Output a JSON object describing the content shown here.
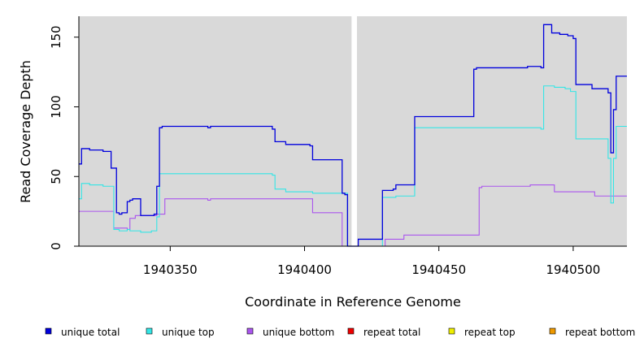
{
  "chart_data": {
    "type": "line",
    "xlabel": "Coordinate in Reference Genome",
    "ylabel": "Read Coverage Depth",
    "xlim": [
      1940316,
      1940520
    ],
    "ylim": [
      0,
      165
    ],
    "x_ticks": [
      1940350,
      1940400,
      1940450,
      1940500
    ],
    "x_tick_labels": [
      "1940350",
      "1940400",
      "1940450",
      "1940500"
    ],
    "y_ticks": [
      0,
      50,
      100,
      150
    ],
    "y_tick_labels": [
      "0",
      "50",
      "100",
      "150"
    ],
    "panel_color": "#d9d9d9",
    "gap": [
      1940417.5,
      1940419.5
    ],
    "legend_position": "bottom",
    "series": [
      {
        "name": "unique total",
        "color": "#0000dd",
        "points": [
          [
            1940316,
            59
          ],
          [
            1940317,
            70
          ],
          [
            1940320,
            69
          ],
          [
            1940325,
            68
          ],
          [
            1940328,
            56
          ],
          [
            1940330,
            24
          ],
          [
            1940331,
            23
          ],
          [
            1940332,
            24
          ],
          [
            1940334,
            32
          ],
          [
            1940335,
            33
          ],
          [
            1940336,
            34
          ],
          [
            1940339,
            22
          ],
          [
            1940344,
            23
          ],
          [
            1940345,
            43
          ],
          [
            1940346,
            85
          ],
          [
            1940347,
            86
          ],
          [
            1940364,
            85
          ],
          [
            1940365,
            86
          ],
          [
            1940388,
            84
          ],
          [
            1940389,
            75
          ],
          [
            1940393,
            73
          ],
          [
            1940402,
            72
          ],
          [
            1940403,
            62
          ],
          [
            1940414,
            38
          ],
          [
            1940415,
            37
          ],
          [
            1940416,
            0
          ],
          [
            1940420,
            5
          ],
          [
            1940429,
            40
          ],
          [
            1940433,
            41
          ],
          [
            1940434,
            44
          ],
          [
            1940441,
            93
          ],
          [
            1940463,
            127
          ],
          [
            1940464,
            128
          ],
          [
            1940483,
            129
          ],
          [
            1940488,
            128
          ],
          [
            1940489,
            159
          ],
          [
            1940492,
            153
          ],
          [
            1940495,
            152
          ],
          [
            1940498,
            151
          ],
          [
            1940500,
            149
          ],
          [
            1940501,
            116
          ],
          [
            1940507,
            113
          ],
          [
            1940513,
            110
          ],
          [
            1940514,
            67
          ],
          [
            1940515,
            98
          ],
          [
            1940516,
            122
          ],
          [
            1940520,
            122
          ]
        ]
      },
      {
        "name": "unique top",
        "color": "#33e6e6",
        "points": [
          [
            1940316,
            34
          ],
          [
            1940317,
            45
          ],
          [
            1940320,
            44
          ],
          [
            1940325,
            43
          ],
          [
            1940329,
            12
          ],
          [
            1940331,
            11
          ],
          [
            1940334,
            12
          ],
          [
            1940335,
            11
          ],
          [
            1940339,
            10
          ],
          [
            1940343,
            11
          ],
          [
            1940345,
            21
          ],
          [
            1940346,
            52
          ],
          [
            1940388,
            51
          ],
          [
            1940389,
            41
          ],
          [
            1940393,
            39
          ],
          [
            1940403,
            38
          ],
          [
            1940416,
            0
          ],
          [
            1940429,
            35
          ],
          [
            1940434,
            36
          ],
          [
            1940441,
            85
          ],
          [
            1940488,
            84
          ],
          [
            1940489,
            115
          ],
          [
            1940493,
            114
          ],
          [
            1940497,
            113
          ],
          [
            1940499,
            111
          ],
          [
            1940501,
            77
          ],
          [
            1940513,
            63
          ],
          [
            1940514,
            31
          ],
          [
            1940515,
            63
          ],
          [
            1940516,
            86
          ],
          [
            1940520,
            86
          ]
        ]
      },
      {
        "name": "unique bottom",
        "color": "#aa55ee",
        "points": [
          [
            1940316,
            25
          ],
          [
            1940329,
            13
          ],
          [
            1940334,
            12
          ],
          [
            1940335,
            20
          ],
          [
            1940337,
            22
          ],
          [
            1940345,
            23
          ],
          [
            1940348,
            34
          ],
          [
            1940364,
            33
          ],
          [
            1940365,
            34
          ],
          [
            1940403,
            24
          ],
          [
            1940414,
            0
          ],
          [
            1940430,
            5
          ],
          [
            1940437,
            8
          ],
          [
            1940465,
            42
          ],
          [
            1940466,
            43
          ],
          [
            1940484,
            44
          ],
          [
            1940493,
            39
          ],
          [
            1940508,
            36
          ],
          [
            1940520,
            36
          ]
        ]
      },
      {
        "name": "repeat total",
        "color": "#ee0000",
        "points": [
          [
            1940316,
            0
          ],
          [
            1940520,
            0
          ]
        ]
      },
      {
        "name": "repeat top",
        "color": "#eeee00",
        "points": [
          [
            1940316,
            0
          ],
          [
            1940520,
            0
          ]
        ]
      },
      {
        "name": "repeat bottom",
        "color": "#ee9900",
        "points": [
          [
            1940316,
            0
          ],
          [
            1940520,
            0
          ]
        ]
      }
    ]
  }
}
